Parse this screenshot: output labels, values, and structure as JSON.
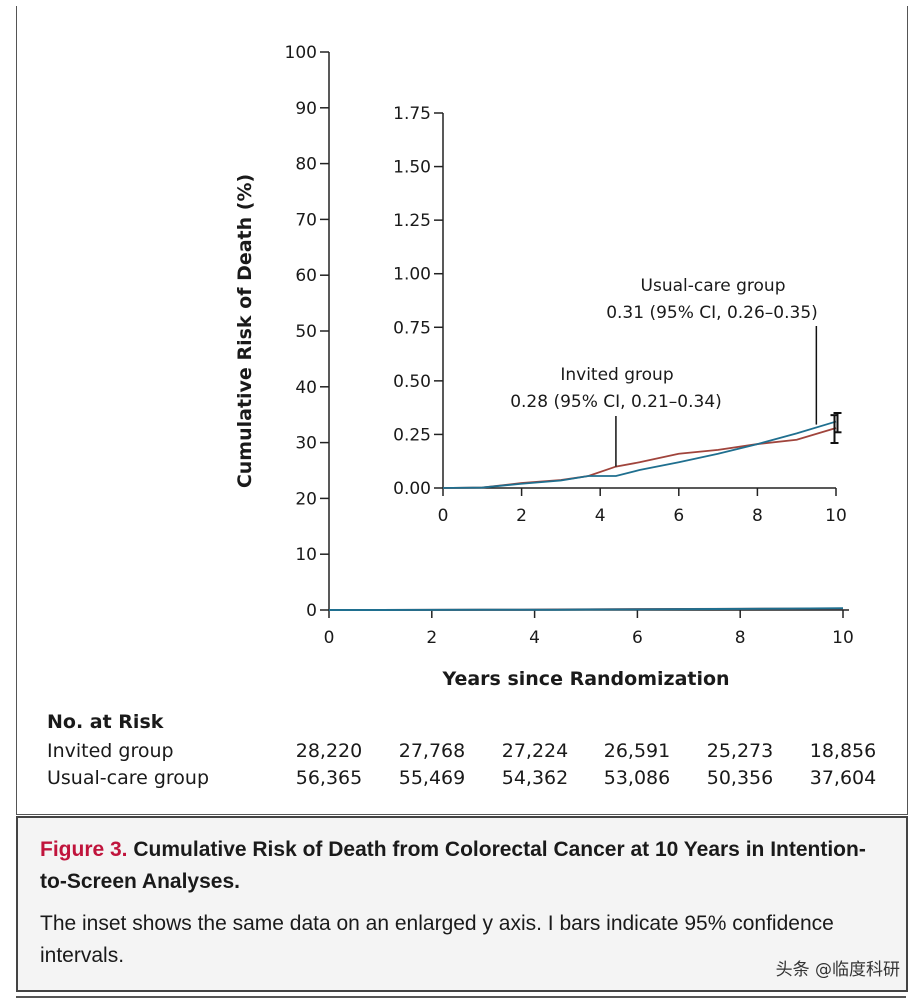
{
  "chart_data": {
    "type": "line",
    "main": {
      "xlabel": "Years since Randomization",
      "ylabel": "Cumulative Risk of Death (%)",
      "xlim": [
        0,
        10
      ],
      "ylim": [
        0,
        100
      ],
      "xticks": [
        0,
        2,
        4,
        6,
        8,
        10
      ],
      "yticks": [
        0,
        10,
        20,
        30,
        40,
        50,
        60,
        70,
        80,
        90,
        100
      ]
    },
    "inset": {
      "xlim": [
        0,
        10
      ],
      "ylim": [
        0,
        1.75
      ],
      "xticks": [
        "0",
        "2",
        "4",
        "6",
        "8",
        "10"
      ],
      "yticks": [
        "0.00",
        "0.25",
        "0.50",
        "0.75",
        "1.00",
        "1.25",
        "1.50",
        "1.75"
      ],
      "annotations": [
        {
          "line1": "Usual-care group",
          "line2": "0.31 (95% CI, 0.26–0.35)",
          "x": 9.5,
          "y": 0.31
        },
        {
          "line1": "Invited group",
          "line2": "0.28 (95% CI, 0.21–0.34)",
          "x": 4.4,
          "y": 0.1
        }
      ]
    },
    "series": [
      {
        "name": "Invited group",
        "color": "#a0443c",
        "x": [
          0,
          1,
          2,
          3,
          3.7,
          4.4,
          5,
          6,
          7,
          8,
          9,
          10
        ],
        "y": [
          0,
          0.002,
          0.023,
          0.037,
          0.056,
          0.1,
          0.12,
          0.16,
          0.178,
          0.205,
          0.225,
          0.28
        ],
        "ci_at_10": [
          0.21,
          0.34
        ]
      },
      {
        "name": "Usual-care group",
        "color": "#1f6f8f",
        "x": [
          0,
          1,
          2,
          3,
          3.7,
          4.4,
          5,
          6,
          7,
          8,
          9,
          10
        ],
        "y": [
          0,
          0.002,
          0.02,
          0.035,
          0.056,
          0.056,
          0.084,
          0.12,
          0.16,
          0.205,
          0.255,
          0.31
        ],
        "ci_at_10": [
          0.26,
          0.35
        ]
      }
    ]
  },
  "risk_table": {
    "heading": "No. at Risk",
    "rows": [
      {
        "label": "Invited group",
        "values": [
          "28,220",
          "27,768",
          "27,224",
          "26,591",
          "25,273",
          "18,856"
        ]
      },
      {
        "label": "Usual-care group",
        "values": [
          "56,365",
          "55,469",
          "54,362",
          "53,086",
          "50,356",
          "37,604"
        ]
      }
    ]
  },
  "caption": {
    "figure_label": "Figure 3.",
    "title": " Cumulative Risk of Death from Colorectal Cancer at 10 Years in Intention-to-Screen Analyses.",
    "body": "The inset shows the same data on an enlarged y axis. I bars indicate 95% confidence intervals."
  },
  "watermark": "头条 @临度科研"
}
